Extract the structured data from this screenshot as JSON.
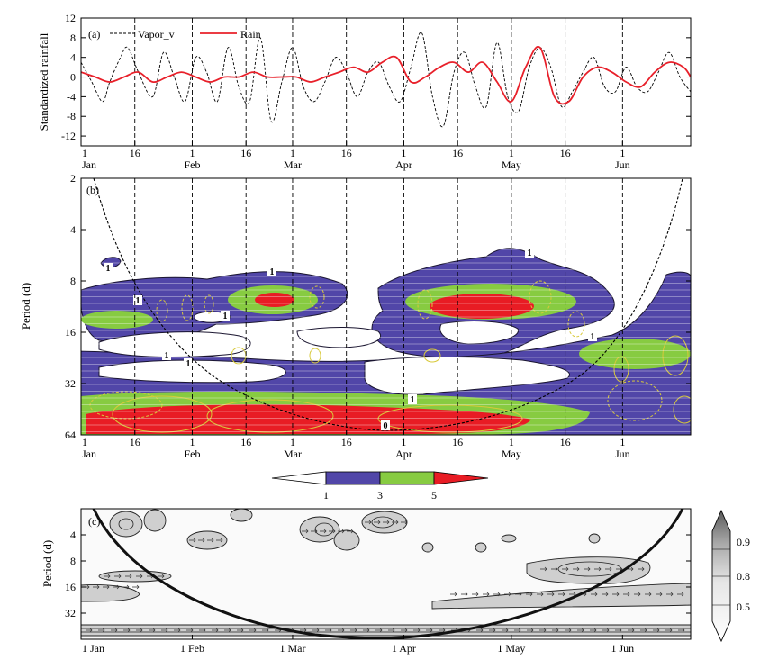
{
  "figure": {
    "panel_a": {
      "label": "(a)",
      "ylabel": "Standardized rainfall"
    },
    "panel_b": {
      "label": "(b)",
      "ylabel": "Period (d)"
    },
    "panel_c": {
      "label": "(c)",
      "ylabel": "Period (d)"
    }
  },
  "chart_data": [
    {
      "type": "line",
      "panel": "a",
      "ylim": [
        -14,
        12
      ],
      "yticks": [
        "12",
        "8",
        "4",
        "0",
        "-4",
        "-8",
        "-12"
      ],
      "x_domain_days": [
        0,
        170
      ],
      "xticks": [
        {
          "day": 0,
          "top": "1",
          "bottom": "Jan"
        },
        {
          "day": 15,
          "top": "16",
          "bottom": ""
        },
        {
          "day": 31,
          "top": "1",
          "bottom": "Feb"
        },
        {
          "day": 46,
          "top": "16",
          "bottom": ""
        },
        {
          "day": 59,
          "top": "1",
          "bottom": "Mar"
        },
        {
          "day": 74,
          "top": "16",
          "bottom": ""
        },
        {
          "day": 90,
          "top": "1",
          "bottom": "Apr"
        },
        {
          "day": 105,
          "top": "16",
          "bottom": ""
        },
        {
          "day": 120,
          "top": "1",
          "bottom": "May"
        },
        {
          "day": 135,
          "top": "16",
          "bottom": ""
        },
        {
          "day": 151,
          "top": "1",
          "bottom": "Jun"
        }
      ],
      "legend": [
        {
          "name": "Vapor_v",
          "color": "#000000",
          "dash": true
        },
        {
          "name": "Rain",
          "color": "#e8202a",
          "dash": false
        }
      ],
      "series": [
        {
          "name": "Vapor_v",
          "color": "#000000",
          "x": [
            0,
            3,
            6,
            8,
            11,
            13,
            16,
            20,
            23,
            26,
            29,
            32,
            35,
            38,
            41,
            44,
            47,
            50,
            53,
            56,
            59,
            62,
            65,
            68,
            71,
            74,
            77,
            80,
            83,
            86,
            89,
            92,
            95,
            98,
            101,
            104,
            107,
            110,
            113,
            116,
            119,
            122,
            125,
            128,
            131,
            134,
            137,
            140,
            143,
            146,
            149,
            152,
            155,
            158,
            161,
            164,
            167,
            170
          ],
          "y": [
            3,
            -1,
            -5,
            -1,
            4,
            6,
            1,
            -4,
            5,
            0,
            -5,
            4,
            1,
            -5,
            6,
            -2,
            -5,
            8,
            -9,
            -1,
            6,
            -2,
            -5,
            -1,
            4,
            1,
            -4,
            1,
            3,
            -2,
            -5,
            2,
            9,
            -4,
            -10,
            1,
            5,
            -2,
            -6,
            7,
            -4,
            -7,
            2,
            6,
            2,
            -6,
            -3,
            1,
            4,
            -2,
            -3,
            2,
            -2,
            -3,
            1,
            5,
            0,
            -3
          ]
        },
        {
          "name": "Rain",
          "color": "#e8202a",
          "x": [
            0,
            4,
            8,
            12,
            16,
            20,
            24,
            28,
            32,
            36,
            40,
            44,
            48,
            52,
            56,
            60,
            64,
            68,
            72,
            76,
            80,
            84,
            88,
            92,
            96,
            100,
            104,
            108,
            112,
            116,
            120,
            124,
            128,
            132,
            136,
            140,
            144,
            148,
            152,
            156,
            160,
            164,
            168,
            170
          ],
          "y": [
            1,
            0,
            -1,
            0,
            1,
            -1,
            0,
            1,
            0,
            -1,
            0,
            0,
            1,
            0,
            0,
            0,
            -1,
            0,
            1,
            2,
            1,
            3,
            4,
            -1,
            0,
            2,
            3,
            1,
            3,
            -1,
            -5,
            2,
            6,
            -4,
            -5,
            0,
            2,
            1,
            -1,
            -2,
            1,
            3,
            2,
            0
          ]
        }
      ]
    },
    {
      "type": "heatmap",
      "panel": "b",
      "ylabel": "Period (d)",
      "y_scale": "log2",
      "ylim": [
        2,
        64
      ],
      "yticks": [
        "2",
        "4",
        "8",
        "16",
        "32",
        "64"
      ],
      "colorbar": {
        "levels": [
          1,
          3,
          5
        ],
        "labels": [
          "1",
          "3",
          "5"
        ],
        "colors": [
          "#ffffff",
          "#5146a8",
          "#87cb41",
          "#e81c24"
        ]
      },
      "contour_labels": [
        "1",
        "1",
        "1",
        "1",
        "1",
        "1",
        "1",
        "1",
        "1",
        "0"
      ],
      "features": [
        {
          "desc": "strong power band",
          "period_range": [
            40,
            60
          ],
          "day_range": [
            10,
            120
          ],
          "level": 5
        },
        {
          "desc": "strong power",
          "period_range": [
            10,
            13
          ],
          "day_range": [
            48,
            58
          ],
          "level": 5
        },
        {
          "desc": "strong power",
          "period_range": [
            10,
            14
          ],
          "day_range": [
            96,
            120
          ],
          "level": 5
        }
      ]
    },
    {
      "type": "heatmap",
      "panel": "c",
      "ylabel": "Period (d)",
      "y_scale": "log2",
      "ylim": [
        2,
        64
      ],
      "yticks": [
        "4",
        "8",
        "16",
        "32"
      ],
      "xticks": [
        {
          "day": 0,
          "label": "1 Jan"
        },
        {
          "day": 31,
          "label": "1 Feb"
        },
        {
          "day": 59,
          "label": "1 Mar"
        },
        {
          "day": 90,
          "label": "1 Apr"
        },
        {
          "day": 120,
          "label": "1 May"
        },
        {
          "day": 151,
          "label": "1 Jun"
        }
      ],
      "colorbar": {
        "labels": [
          "0.9",
          "0.8",
          "0.5"
        ],
        "values": [
          0.9,
          0.8,
          0.5
        ]
      }
    }
  ]
}
